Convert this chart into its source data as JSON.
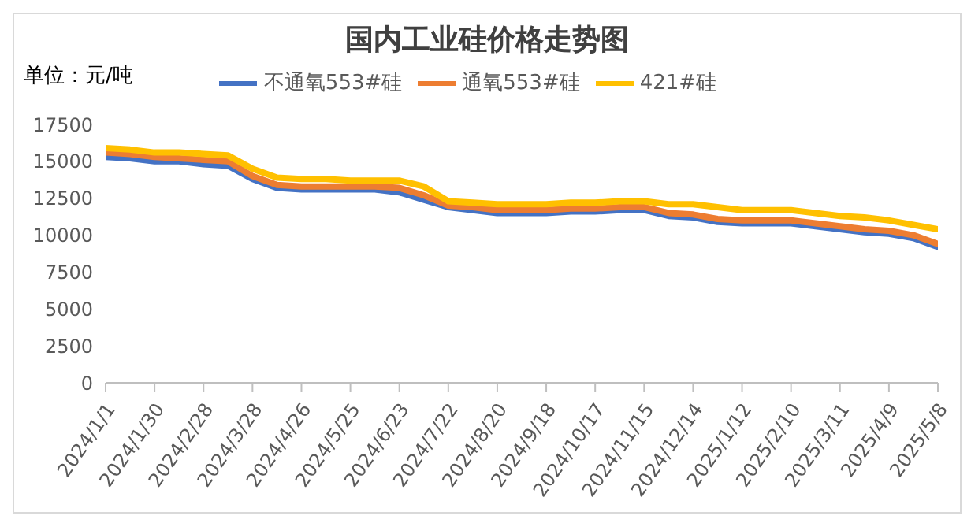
{
  "chart_data": {
    "type": "line",
    "title": "国内工业硅价格走势图",
    "annotations": [
      "单位：元/吨"
    ],
    "categories": [
      "2024/1/1",
      null,
      "2024/1/30",
      null,
      "2024/2/28",
      null,
      "2024/3/28",
      null,
      "2024/4/26",
      null,
      "2024/5/25",
      null,
      "2024/6/23",
      null,
      "2024/7/22",
      null,
      "2024/8/20",
      null,
      "2024/9/18",
      null,
      "2024/10/17",
      null,
      "2024/11/15",
      null,
      "2024/12/14",
      null,
      "2025/1/12",
      null,
      "2025/2/10",
      null,
      "2025/3/11",
      null,
      "2025/4/9",
      null,
      "2025/5/8"
    ],
    "series": [
      {
        "name": "不通氧553#硅",
        "color": "#4472c4",
        "values": [
          15300,
          15200,
          15000,
          15000,
          14800,
          14700,
          13800,
          13200,
          13100,
          13100,
          13100,
          13100,
          12900,
          12400,
          11900,
          11700,
          11500,
          11500,
          11500,
          11600,
          11600,
          11700,
          11700,
          11300,
          11200,
          10900,
          10800,
          10800,
          10800,
          10600,
          10400,
          10200,
          10100,
          9800,
          9200
        ]
      },
      {
        "name": "通氧553#硅",
        "color": "#ed7d31",
        "values": [
          15600,
          15500,
          15300,
          15200,
          15100,
          15000,
          14000,
          13400,
          13300,
          13300,
          13300,
          13300,
          13200,
          12700,
          12000,
          11900,
          11700,
          11700,
          11700,
          11800,
          11800,
          11900,
          11900,
          11500,
          11400,
          11100,
          11000,
          11000,
          11000,
          10800,
          10600,
          10400,
          10300,
          10000,
          9400
        ]
      },
      {
        "name": "421#硅",
        "color": "#ffc000",
        "values": [
          15900,
          15800,
          15600,
          15600,
          15500,
          15400,
          14500,
          13900,
          13800,
          13800,
          13700,
          13700,
          13700,
          13300,
          12300,
          12200,
          12100,
          12100,
          12100,
          12200,
          12200,
          12300,
          12300,
          12100,
          12100,
          11900,
          11700,
          11700,
          11700,
          11500,
          11300,
          11200,
          11000,
          10700,
          10400
        ]
      }
    ],
    "ylim": [
      0,
      17500
    ],
    "yticks": [
      0,
      2500,
      5000,
      7500,
      10000,
      12500,
      15000,
      17500
    ],
    "grid": false,
    "legend": "top",
    "marker": "none",
    "line_style": "solid"
  }
}
